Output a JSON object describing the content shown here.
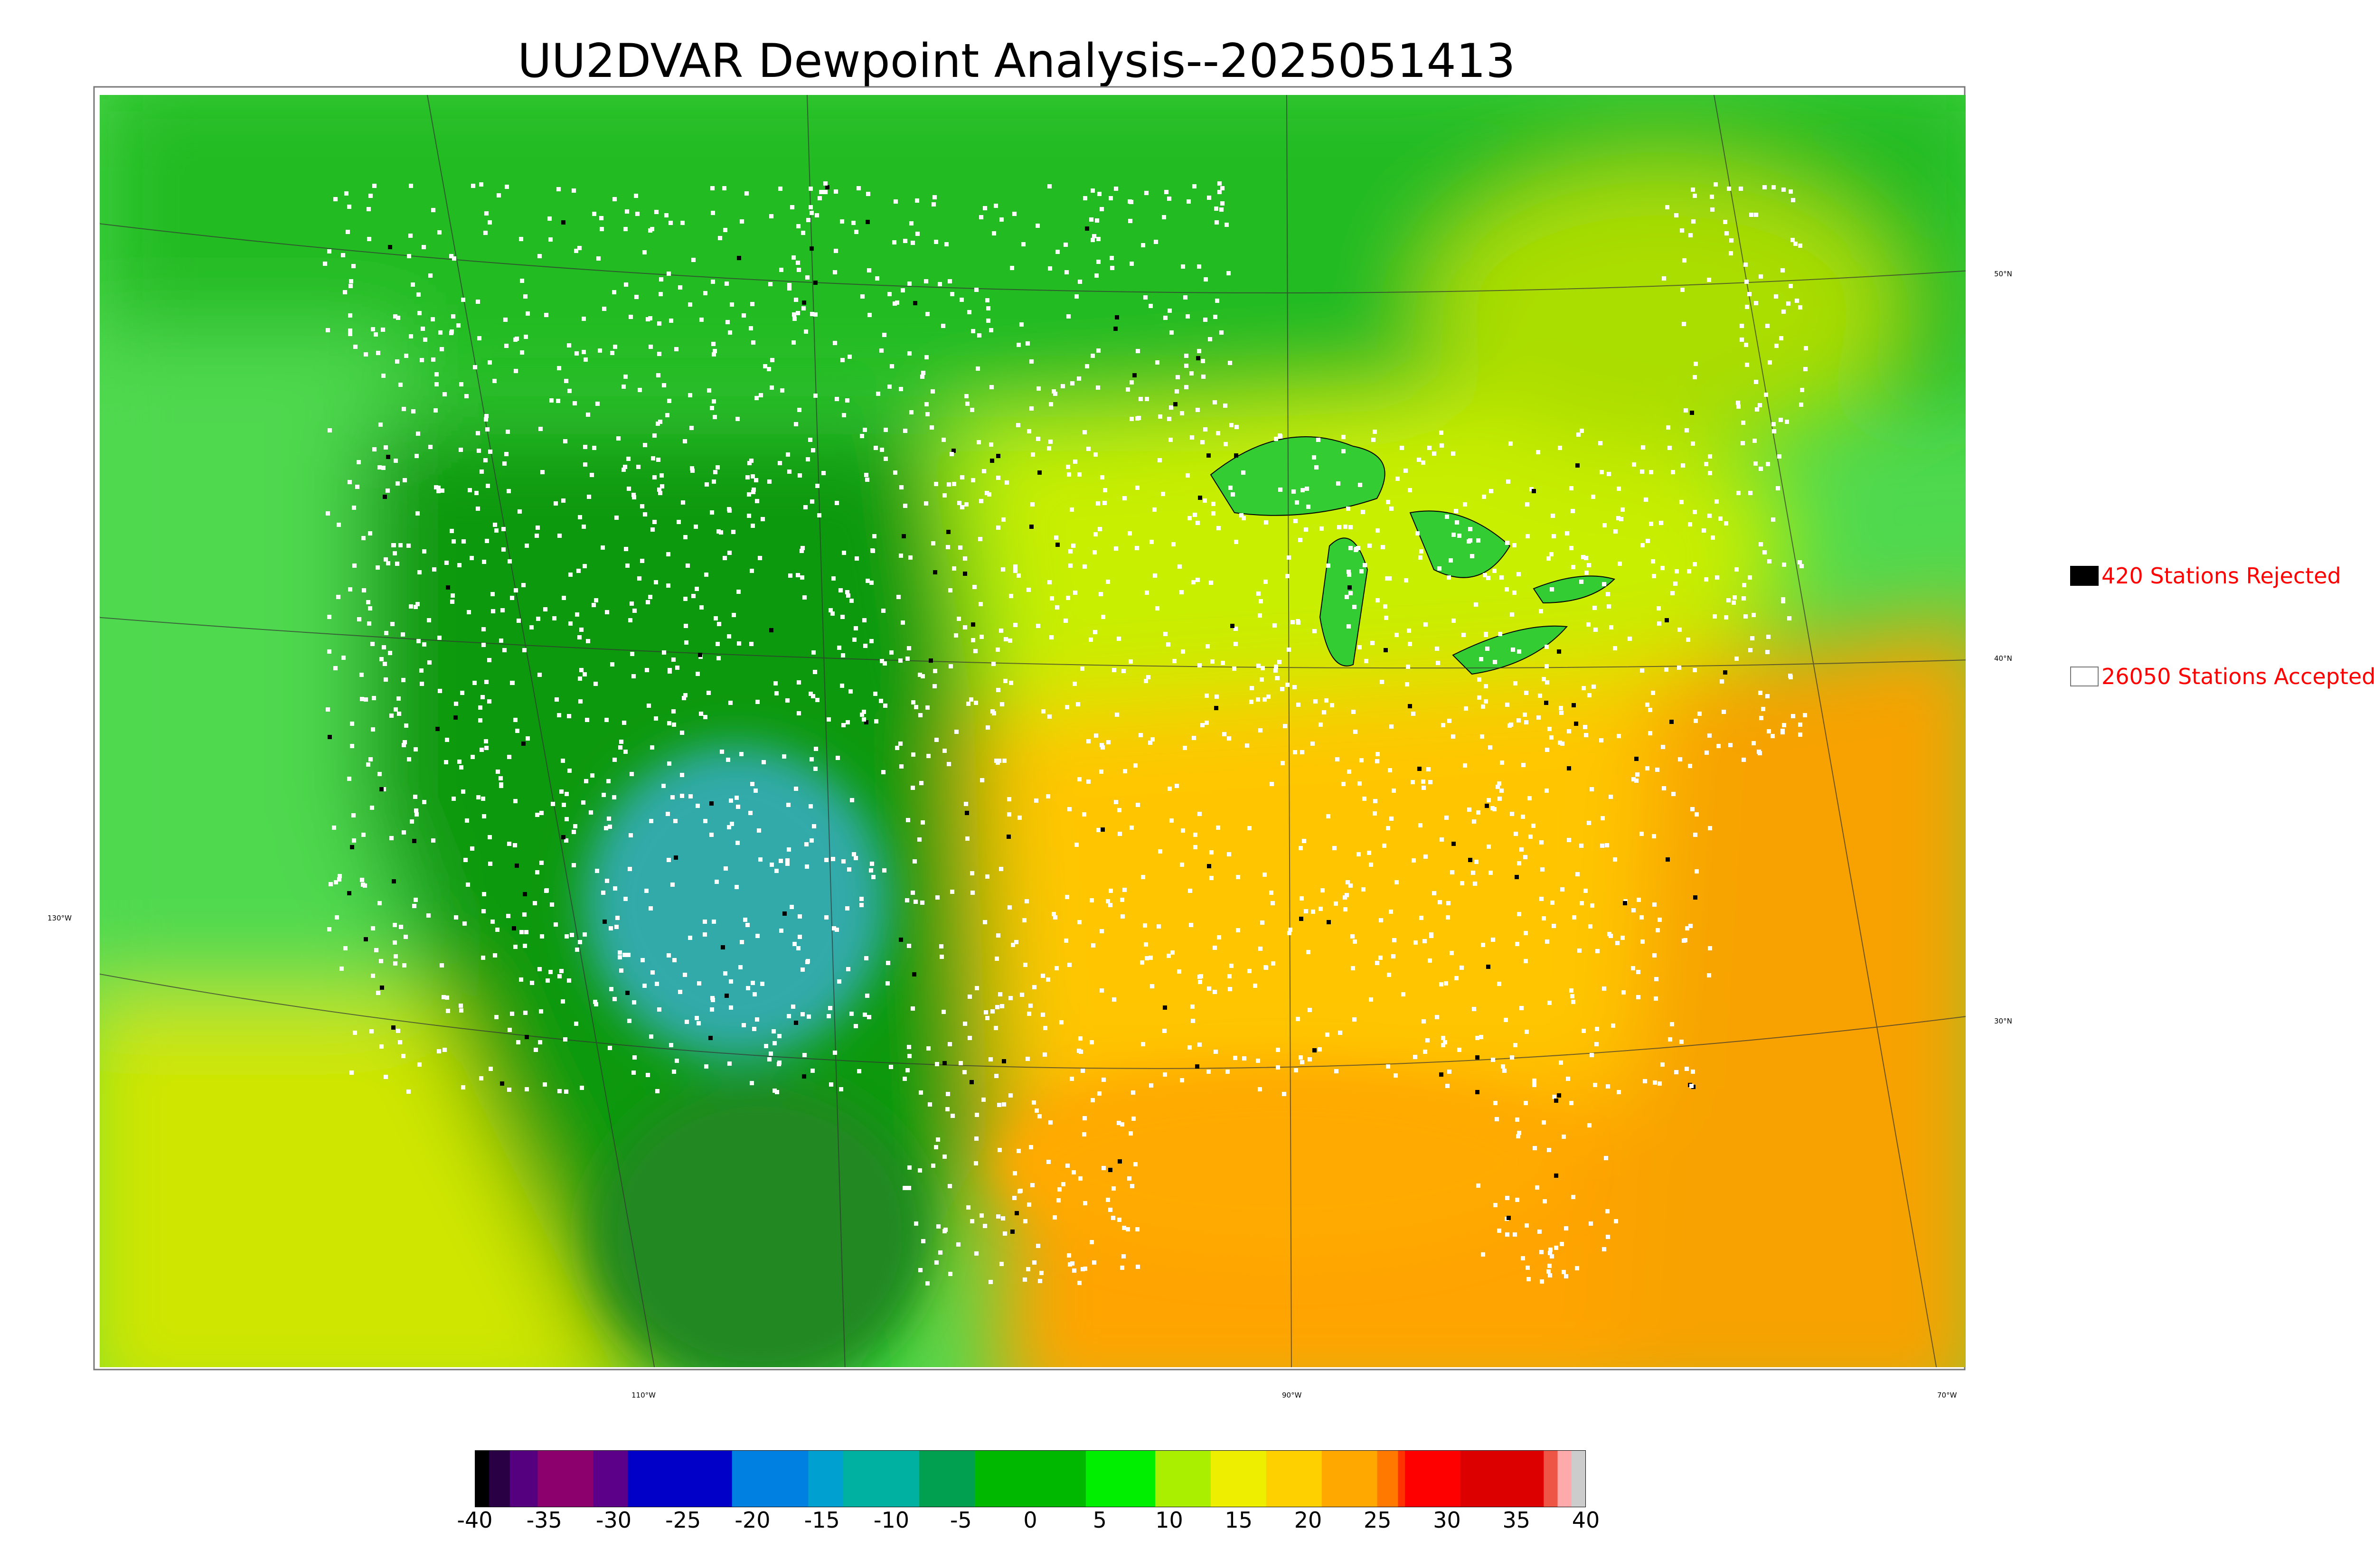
{
  "title": "UU2DVAR Dewpoint Analysis--2025051413",
  "map": {
    "latitude_labels": [
      "50°N",
      "40°N",
      "30°N"
    ],
    "longitude_labels": [
      "130°W",
      "110°W",
      "90°W",
      "70°W"
    ],
    "colors": {
      "ocean_west": "#4fd94f",
      "ocean_gulf": "#ffa400",
      "ocean_atlantic": "#f7a200",
      "canada": "#22bb22",
      "west_dry": "#119911",
      "four_corners": "#33aaaa",
      "plains": "#c8ee00",
      "southeast": "#ffc600",
      "station_accepted": "#ffffff",
      "station_rejected": "#000000"
    }
  },
  "legend": {
    "rejected": {
      "label": "420 Stations Rejected",
      "swatch_color": "#000000"
    },
    "accepted": {
      "label": "26050 Stations Accepted",
      "swatch_color": "#ffffff"
    }
  },
  "colorbar": {
    "ticks": [
      "-40",
      "-35",
      "-30",
      "-25",
      "-20",
      "-15",
      "-10",
      "-5",
      "0",
      "5",
      "10",
      "15",
      "20",
      "25",
      "30",
      "35",
      "40"
    ],
    "range": [
      -40,
      40
    ],
    "segments": [
      {
        "from": -40,
        "to": -39,
        "color": "#000000"
      },
      {
        "from": -39,
        "to": -37.5,
        "color": "#2a0044"
      },
      {
        "from": -37.5,
        "to": -35.5,
        "color": "#55007f"
      },
      {
        "from": -35.5,
        "to": -31.5,
        "color": "#8c006e"
      },
      {
        "from": -31.5,
        "to": -29,
        "color": "#5c008a"
      },
      {
        "from": -29,
        "to": -21.5,
        "color": "#0000c8"
      },
      {
        "from": -21.5,
        "to": -16,
        "color": "#0080e0"
      },
      {
        "from": -16,
        "to": -13.5,
        "color": "#00a0d0"
      },
      {
        "from": -13.5,
        "to": -8,
        "color": "#00b0a0"
      },
      {
        "from": -8,
        "to": -4,
        "color": "#00a050"
      },
      {
        "from": -4,
        "to": 4,
        "color": "#00b800"
      },
      {
        "from": 4,
        "to": 9,
        "color": "#00ee00"
      },
      {
        "from": 9,
        "to": 13,
        "color": "#aaee00"
      },
      {
        "from": 13,
        "to": 17,
        "color": "#eeee00"
      },
      {
        "from": 17,
        "to": 21,
        "color": "#ffd000"
      },
      {
        "from": 21,
        "to": 25,
        "color": "#ffa800"
      },
      {
        "from": 25,
        "to": 26.5,
        "color": "#ff7800"
      },
      {
        "from": 26.5,
        "to": 27,
        "color": "#ff3300"
      },
      {
        "from": 27,
        "to": 31,
        "color": "#ff0000"
      },
      {
        "from": 31,
        "to": 37,
        "color": "#dd0000"
      },
      {
        "from": 37,
        "to": 38,
        "color": "#ee5544"
      },
      {
        "from": 38,
        "to": 39,
        "color": "#ffaaaa"
      },
      {
        "from": 39,
        "to": 40,
        "color": "#cccccc"
      }
    ]
  }
}
